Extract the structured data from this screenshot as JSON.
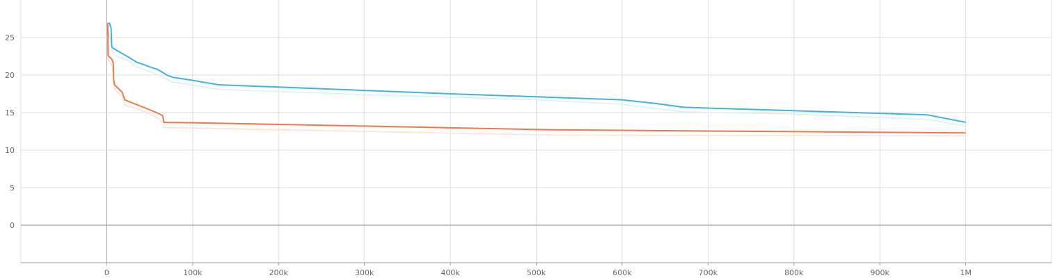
{
  "chart_data": {
    "type": "line",
    "title": "",
    "xlabel": "",
    "ylabel": "",
    "xlim": [
      -100000,
      1100000
    ],
    "ylim": [
      -5,
      30
    ],
    "x_ticks": [
      {
        "value": 0,
        "label": "0"
      },
      {
        "value": 100000,
        "label": "100k"
      },
      {
        "value": 200000,
        "label": "200k"
      },
      {
        "value": 300000,
        "label": "300k"
      },
      {
        "value": 400000,
        "label": "400k"
      },
      {
        "value": 500000,
        "label": "500k"
      },
      {
        "value": 600000,
        "label": "600k"
      },
      {
        "value": 700000,
        "label": "700k"
      },
      {
        "value": 800000,
        "label": "800k"
      },
      {
        "value": 900000,
        "label": "900k"
      },
      {
        "value": 1000000,
        "label": "1M"
      }
    ],
    "y_ticks": [
      {
        "value": 0,
        "label": "0"
      },
      {
        "value": 5,
        "label": "5"
      },
      {
        "value": 10,
        "label": "10"
      },
      {
        "value": 15,
        "label": "15"
      },
      {
        "value": 20,
        "label": "20"
      },
      {
        "value": 25,
        "label": "25"
      }
    ],
    "grid": true,
    "series": [
      {
        "color": "#40b3e0",
        "raw_color": "#d9eff9",
        "smoothed": [
          [
            1000,
            26.9
          ],
          [
            3000,
            26.9
          ],
          [
            5000,
            26.3
          ],
          [
            5500,
            24.5
          ],
          [
            6000,
            23.8
          ],
          [
            7000,
            23.6
          ],
          [
            25000,
            22.4
          ],
          [
            35000,
            21.7
          ],
          [
            60000,
            20.7
          ],
          [
            70000,
            20.0
          ],
          [
            77000,
            19.7
          ],
          [
            100000,
            19.3
          ],
          [
            130000,
            18.7
          ],
          [
            200000,
            18.4
          ],
          [
            300000,
            17.95
          ],
          [
            400000,
            17.5
          ],
          [
            500000,
            17.1
          ],
          [
            600000,
            16.7
          ],
          [
            640000,
            16.2
          ],
          [
            672000,
            15.7
          ],
          [
            700000,
            15.6
          ],
          [
            800000,
            15.25
          ],
          [
            900000,
            14.9
          ],
          [
            955000,
            14.7
          ],
          [
            1000000,
            13.7
          ]
        ],
        "raw": [
          [
            1000,
            26.0
          ],
          [
            4000,
            25.0
          ],
          [
            6000,
            23.2
          ],
          [
            10000,
            22.6
          ],
          [
            25000,
            21.9
          ],
          [
            35000,
            21.1
          ],
          [
            60000,
            20.0
          ],
          [
            76000,
            19.1
          ],
          [
            130000,
            18.1
          ],
          [
            300000,
            17.4
          ],
          [
            500000,
            16.7
          ],
          [
            600000,
            16.1
          ],
          [
            650000,
            15.4
          ],
          [
            672000,
            15.1
          ],
          [
            800000,
            14.8
          ],
          [
            955000,
            14.1
          ],
          [
            1000000,
            13.2
          ]
        ]
      },
      {
        "color": "#f0784a",
        "raw_color": "#fbe1d6",
        "smoothed": [
          [
            800,
            26.9
          ],
          [
            1200,
            26.5
          ],
          [
            1600,
            22.6
          ],
          [
            6000,
            22.1
          ],
          [
            7500,
            21.6
          ],
          [
            8000,
            19.5
          ],
          [
            9000,
            18.7
          ],
          [
            18000,
            17.7
          ],
          [
            21000,
            16.7
          ],
          [
            25000,
            16.5
          ],
          [
            45000,
            15.6
          ],
          [
            60000,
            14.9
          ],
          [
            65000,
            14.6
          ],
          [
            66500,
            13.7
          ],
          [
            100000,
            13.65
          ],
          [
            300000,
            13.2
          ],
          [
            520000,
            12.7
          ],
          [
            1000000,
            12.3
          ]
        ],
        "raw": [
          [
            800,
            25.0
          ],
          [
            1600,
            22.0
          ],
          [
            6000,
            21.4
          ],
          [
            8000,
            18.8
          ],
          [
            9000,
            18.1
          ],
          [
            18000,
            17.1
          ],
          [
            21000,
            16.0
          ],
          [
            45000,
            15.1
          ],
          [
            60000,
            14.2
          ],
          [
            65000,
            13.7
          ],
          [
            67000,
            13.0
          ],
          [
            100000,
            12.95
          ],
          [
            300000,
            12.5
          ],
          [
            520000,
            12.0
          ],
          [
            1000000,
            11.9
          ]
        ]
      }
    ]
  }
}
